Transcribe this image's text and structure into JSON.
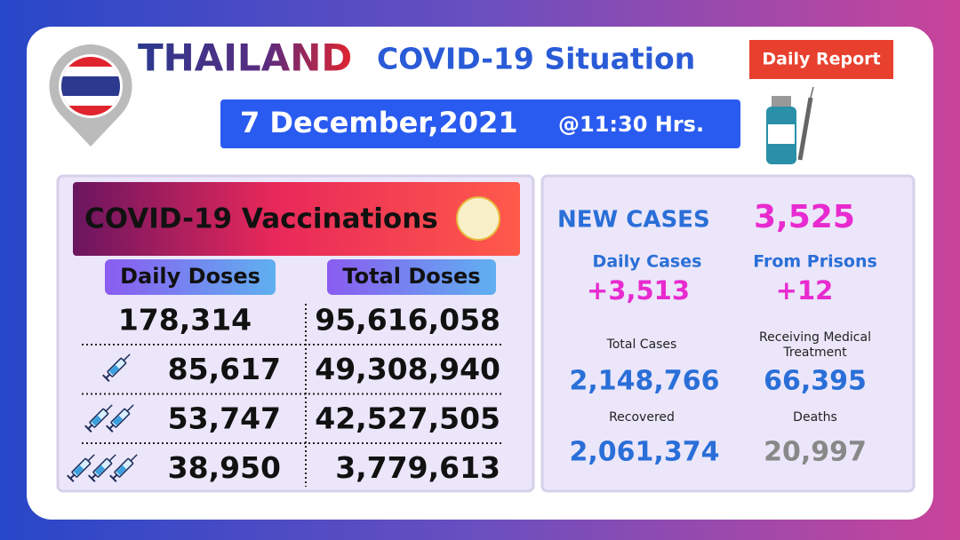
{
  "header": {
    "country": "THAILAND",
    "title": "COVID-19 Situation",
    "badge": "Daily Report",
    "date": "7 December,2021",
    "time": "@11:30 Hrs."
  },
  "vaccinations": {
    "title": "COVID-19 Vaccinations",
    "columns": [
      "Daily Doses",
      "Total Doses"
    ],
    "rows": [
      [
        "178,314",
        "95,616,058"
      ],
      [
        "85,617",
        "49,308,940"
      ],
      [
        "53,747",
        "42,527,505"
      ],
      [
        "38,950",
        "3,779,613"
      ]
    ]
  },
  "cases": {
    "new_cases_label": "NEW CASES",
    "new_cases": "3,525",
    "daily_label": "Daily Cases",
    "daily": "+3,513",
    "prisons_label": "From Prisons",
    "prisons": "+12",
    "total_label": "Total Cases",
    "total": "2,148,766",
    "treatment_label": [
      "Receiving Medical",
      "Treatment"
    ],
    "treatment": "66,395",
    "recovered_label": "Recovered",
    "recovered": "2,061,374",
    "deaths_label": "Deaths",
    "deaths": "20,997"
  }
}
